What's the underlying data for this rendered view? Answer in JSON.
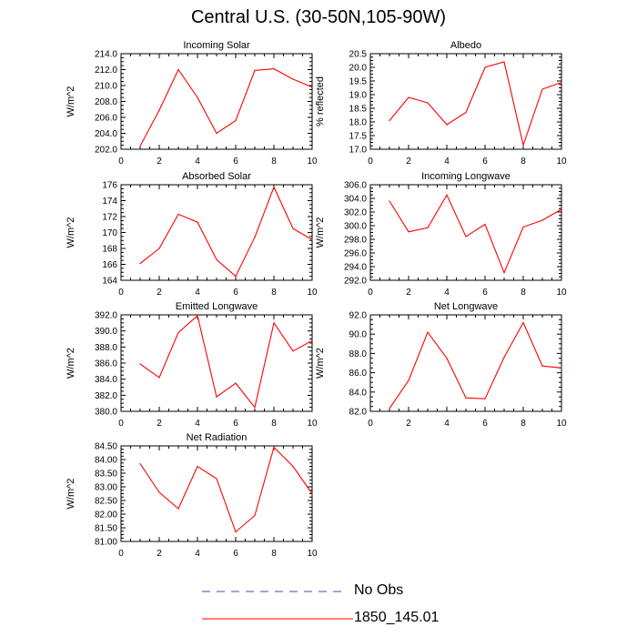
{
  "page_title": "Central U.S. (30-50N,105-90W)",
  "colors": {
    "model_line": "#ff0000",
    "obs_line": "#4a4aa8",
    "axis": "#000000"
  },
  "legend": [
    {
      "label": "No Obs",
      "style": "dashed",
      "color": "#4a4aa8"
    },
    {
      "label": "1850_145.01",
      "style": "solid",
      "color": "#ff0000"
    }
  ],
  "chart_data": [
    {
      "type": "line",
      "title": "Incoming Solar",
      "ylabel": "W/m^2",
      "xlabel": "",
      "xlim": [
        0,
        10
      ],
      "ylim": [
        202,
        214
      ],
      "xticks": [
        0,
        2,
        4,
        6,
        8,
        10
      ],
      "xtick_labels": [
        "0",
        "2",
        "4",
        "6",
        "8",
        "10"
      ],
      "yticks": [
        202,
        204,
        206,
        208,
        210,
        212,
        214
      ],
      "ytick_labels": [
        "202.0",
        "204.0",
        "206.0",
        "208.0",
        "210.0",
        "212.0",
        "214.0"
      ],
      "x": [
        1,
        2,
        3,
        4,
        5,
        6,
        7,
        8,
        9,
        10
      ],
      "series": [
        {
          "name": "1850_145.01",
          "values": [
            202.4,
            206.9,
            212.0,
            208.5,
            204.0,
            205.6,
            211.9,
            212.1,
            210.8,
            209.8
          ]
        }
      ]
    },
    {
      "type": "line",
      "title": "Albedo",
      "ylabel": "% reflected",
      "xlabel": "",
      "xlim": [
        0,
        10
      ],
      "ylim": [
        17,
        20.5
      ],
      "xticks": [
        0,
        2,
        4,
        6,
        8,
        10
      ],
      "xtick_labels": [
        "0",
        "2",
        "4",
        "6",
        "8",
        "10"
      ],
      "yticks": [
        17,
        17.5,
        18,
        18.5,
        19,
        19.5,
        20,
        20.5
      ],
      "ytick_labels": [
        "17.0",
        "17.5",
        "18.0",
        "18.5",
        "19.0",
        "19.5",
        "20.0",
        "20.5"
      ],
      "x": [
        1,
        2,
        3,
        4,
        5,
        6,
        7,
        8,
        9,
        10
      ],
      "series": [
        {
          "name": "1850_145.01",
          "values": [
            18.05,
            18.9,
            18.7,
            17.9,
            18.35,
            20.0,
            20.2,
            17.15,
            19.2,
            19.45
          ]
        }
      ]
    },
    {
      "type": "line",
      "title": "Absorbed Solar",
      "ylabel": "W/m^2",
      "xlabel": "",
      "xlim": [
        0,
        10
      ],
      "ylim": [
        164,
        176
      ],
      "xticks": [
        0,
        2,
        4,
        6,
        8,
        10
      ],
      "xtick_labels": [
        "0",
        "2",
        "4",
        "6",
        "8",
        "10"
      ],
      "yticks": [
        164,
        166,
        168,
        170,
        172,
        174,
        176
      ],
      "ytick_labels": [
        "164",
        "166",
        "168",
        "170",
        "172",
        "174",
        "176"
      ],
      "x": [
        1,
        2,
        3,
        4,
        5,
        6,
        7,
        8,
        9,
        10
      ],
      "series": [
        {
          "name": "1850_145.01",
          "values": [
            166.1,
            168.0,
            172.3,
            171.3,
            166.6,
            164.5,
            169.4,
            175.7,
            170.5,
            169.1
          ]
        }
      ]
    },
    {
      "type": "line",
      "title": "Incoming Longwave",
      "ylabel": "W/m^2",
      "xlabel": "",
      "xlim": [
        0,
        10
      ],
      "ylim": [
        292,
        306
      ],
      "xticks": [
        0,
        2,
        4,
        6,
        8,
        10
      ],
      "xtick_labels": [
        "0",
        "2",
        "4",
        "6",
        "8",
        "10"
      ],
      "yticks": [
        292,
        294,
        296,
        298,
        300,
        302,
        304,
        306
      ],
      "ytick_labels": [
        "292.0",
        "294.0",
        "296.0",
        "298.0",
        "300.0",
        "302.0",
        "304.0",
        "306.0"
      ],
      "x": [
        1,
        2,
        3,
        4,
        5,
        6,
        7,
        8,
        9,
        10
      ],
      "series": [
        {
          "name": "1850_145.01",
          "values": [
            303.6,
            299.1,
            299.7,
            304.5,
            298.4,
            300.2,
            293.1,
            299.8,
            300.8,
            302.4
          ]
        }
      ]
    },
    {
      "type": "line",
      "title": "Emitted Longwave",
      "ylabel": "W/m^2",
      "xlabel": "",
      "xlim": [
        0,
        10
      ],
      "ylim": [
        380,
        392
      ],
      "xticks": [
        0,
        2,
        4,
        6,
        8,
        10
      ],
      "xtick_labels": [
        "0",
        "2",
        "4",
        "6",
        "8",
        "10"
      ],
      "yticks": [
        380,
        382,
        384,
        386,
        388,
        390,
        392
      ],
      "ytick_labels": [
        "380.0",
        "382.0",
        "384.0",
        "386.0",
        "388.0",
        "390.0",
        "392.0"
      ],
      "x": [
        1,
        2,
        3,
        4,
        5,
        6,
        7,
        8,
        9,
        10
      ],
      "series": [
        {
          "name": "1850_145.01",
          "values": [
            385.9,
            384.2,
            389.8,
            391.9,
            381.8,
            383.5,
            380.5,
            391.0,
            387.5,
            388.8
          ]
        }
      ]
    },
    {
      "type": "line",
      "title": "Net Longwave",
      "ylabel": "W/m^2",
      "xlabel": "",
      "xlim": [
        0,
        10
      ],
      "ylim": [
        82,
        92
      ],
      "xticks": [
        0,
        2,
        4,
        6,
        8,
        10
      ],
      "xtick_labels": [
        "0",
        "2",
        "4",
        "6",
        "8",
        "10"
      ],
      "yticks": [
        82,
        84,
        86,
        88,
        90,
        92
      ],
      "ytick_labels": [
        "82.0",
        "84.0",
        "86.0",
        "88.0",
        "90.0",
        "92.0"
      ],
      "x": [
        1,
        2,
        3,
        4,
        5,
        6,
        7,
        8,
        9,
        10
      ],
      "series": [
        {
          "name": "1850_145.01",
          "values": [
            82.3,
            85.2,
            90.2,
            87.5,
            83.4,
            83.3,
            87.6,
            91.2,
            86.7,
            86.5
          ]
        }
      ]
    },
    {
      "type": "line",
      "title": "Net Radiation",
      "ylabel": "W/m^2",
      "xlabel": "",
      "xlim": [
        0,
        10
      ],
      "ylim": [
        81,
        84.5
      ],
      "xticks": [
        0,
        2,
        4,
        6,
        8,
        10
      ],
      "xtick_labels": [
        "0",
        "2",
        "4",
        "6",
        "8",
        "10"
      ],
      "yticks": [
        81,
        81.5,
        82,
        82.5,
        83,
        83.5,
        84,
        84.5
      ],
      "ytick_labels": [
        "81.00",
        "81.50",
        "82.00",
        "82.50",
        "83.00",
        "83.50",
        "84.00",
        "84.50"
      ],
      "x": [
        1,
        2,
        3,
        4,
        5,
        6,
        7,
        8,
        9,
        10
      ],
      "series": [
        {
          "name": "1850_145.01",
          "values": [
            83.85,
            82.8,
            82.2,
            83.75,
            83.3,
            81.35,
            81.95,
            84.45,
            83.75,
            82.75
          ]
        }
      ]
    }
  ]
}
